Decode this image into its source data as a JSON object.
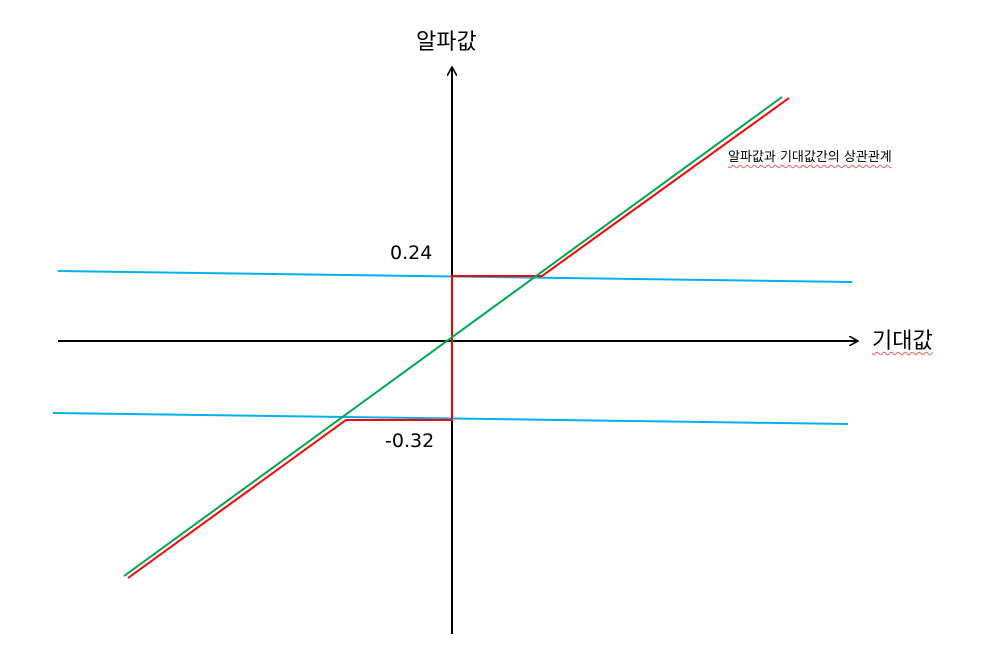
{
  "labels": {
    "y_axis": "알파값",
    "x_axis": "기대값",
    "upper_value": "0.24",
    "lower_value": "-0.32",
    "caption": "알파값과 기대값간의 상관관계"
  },
  "colors": {
    "axis": "#000000",
    "green_line": "#00a651",
    "red_line": "#ff0000",
    "blue_line": "#00b0f0"
  }
}
